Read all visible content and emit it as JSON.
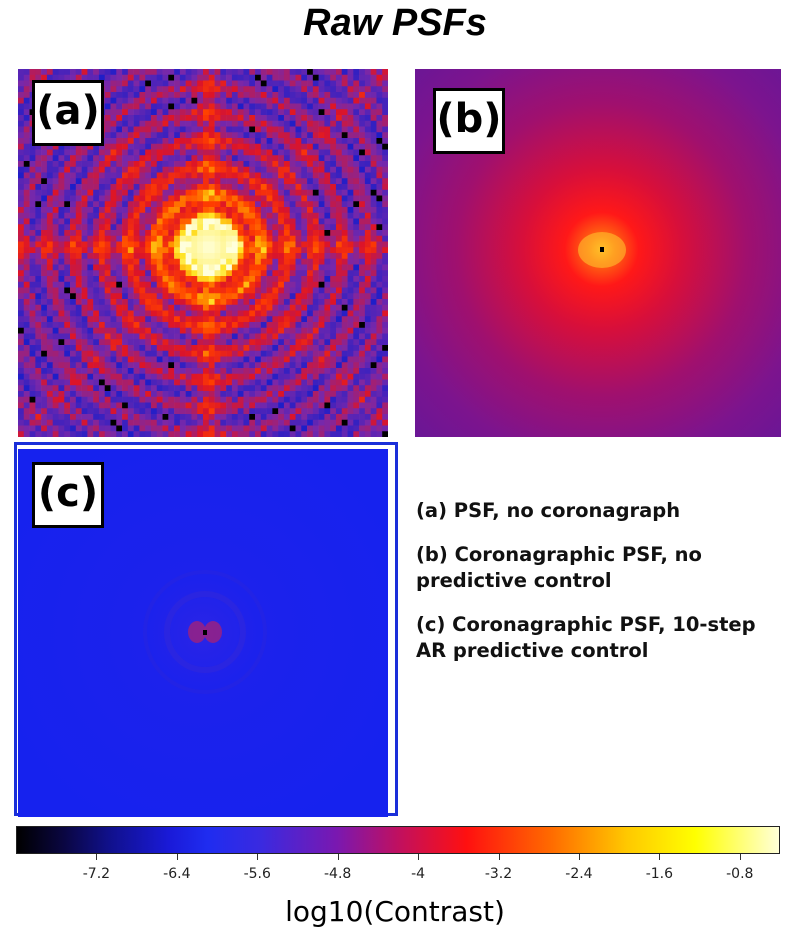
{
  "title": "Raw PSFs",
  "panels": [
    {
      "tag": "(a)"
    },
    {
      "tag": "(b)"
    },
    {
      "tag": "(c)"
    }
  ],
  "legend": [
    "(a) PSF, no coronagraph",
    "(b) Coronagraphic PSF, no predictive control",
    "(c) Coronagraphic PSF, 10-step AR predictive control"
  ],
  "colorbar": {
    "label": "log10(Contrast)",
    "ticks": [
      "-7.2",
      "-6.4",
      "-5.6",
      "-4.8",
      "-4",
      "-3.2",
      "-2.4",
      "-1.6",
      "-0.8"
    ],
    "tick_values": [
      -7.2,
      -6.4,
      -5.6,
      -4.8,
      -4.0,
      -3.2,
      -2.4,
      -1.6,
      -0.8
    ],
    "range": [
      -8.0,
      -0.4
    ],
    "colormap": "gnuplot2-like (black-blue-red-yellow-white)"
  }
}
